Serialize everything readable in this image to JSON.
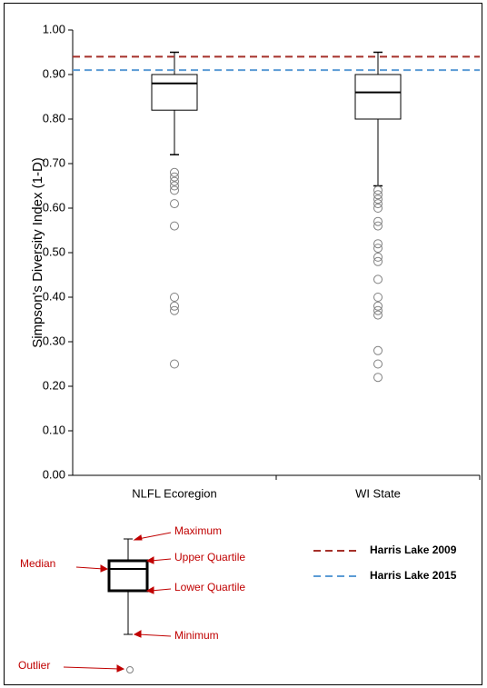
{
  "chart_data": {
    "type": "box",
    "y_label": "Simpson's Diversity Index (1-D)",
    "categories": [
      "NLFL Ecoregion",
      "WI State"
    ],
    "boxes": [
      {
        "min": 0.72,
        "q1": 0.82,
        "median": 0.88,
        "q3": 0.9,
        "max": 0.95,
        "outliers": [
          0.68,
          0.67,
          0.66,
          0.65,
          0.64,
          0.61,
          0.56,
          0.4,
          0.38,
          0.37,
          0.25
        ]
      },
      {
        "min": 0.65,
        "q1": 0.8,
        "median": 0.86,
        "q3": 0.9,
        "max": 0.95,
        "outliers": [
          0.64,
          0.63,
          0.62,
          0.61,
          0.6,
          0.57,
          0.56,
          0.52,
          0.51,
          0.49,
          0.48,
          0.44,
          0.4,
          0.38,
          0.37,
          0.36,
          0.28,
          0.25,
          0.22
        ]
      }
    ],
    "box_color": "#000000",
    "outlier_color": "#808080",
    "reference_lines": [
      {
        "name": "Harris Lake 2009",
        "color": "#a5302a",
        "value": 0.94
      },
      {
        "name": "Harris Lake 2015",
        "color": "#5b9bd5",
        "value": 0.91
      }
    ],
    "ylim": [
      0,
      1
    ],
    "yticks": [
      {
        "value": 0,
        "label": "0.00"
      },
      {
        "value": 0.1,
        "label": "0.10"
      },
      {
        "value": 0.2,
        "label": "0.20"
      },
      {
        "value": 0.3,
        "label": "0.30"
      },
      {
        "value": 0.4,
        "label": "0.40"
      },
      {
        "value": 0.5,
        "label": "0.50"
      },
      {
        "value": 0.6,
        "label": "0.60"
      },
      {
        "value": 0.7,
        "label": "0.70"
      },
      {
        "value": 0.8,
        "label": "0.80"
      },
      {
        "value": 0.9,
        "label": "0.90"
      },
      {
        "value": 1,
        "label": "1.00"
      }
    ],
    "key": {
      "maximum": "Maximum",
      "upper_quartile": "Upper Quartile",
      "median": "Median",
      "lower_quartile": "Lower Quartile",
      "minimum": "Minimum",
      "outlier": "Outlier"
    }
  }
}
